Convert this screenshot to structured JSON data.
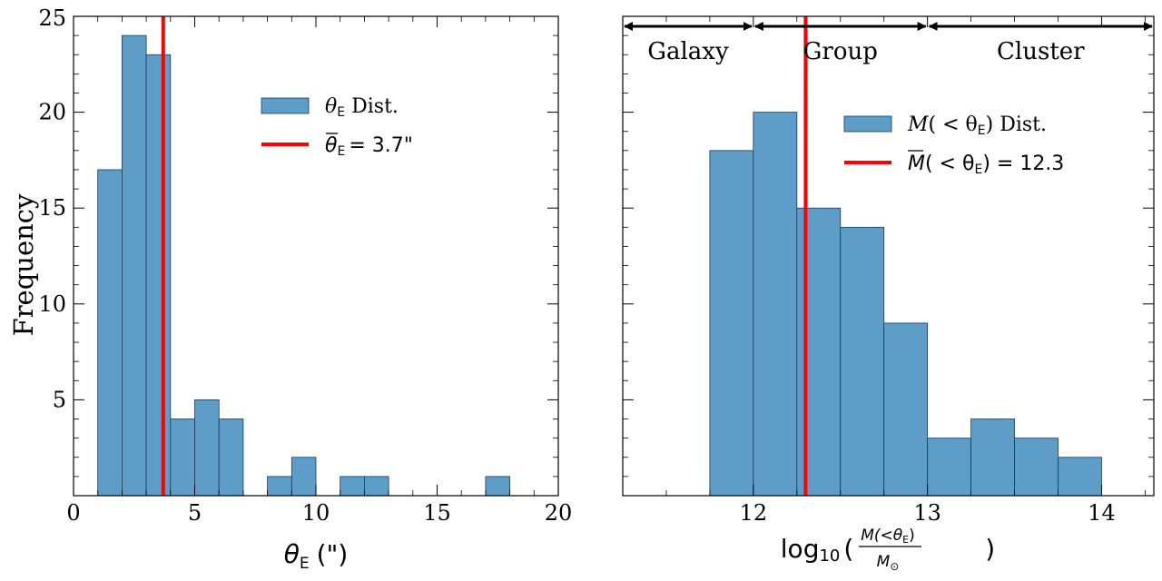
{
  "chart_data": [
    {
      "type": "bar",
      "xlabel_symbol": "θ",
      "xlabel_sub": "E",
      "xlabel_unit": "(\")",
      "ylabel": "Frequency",
      "xlim": [
        0,
        20
      ],
      "ylim": [
        0,
        25
      ],
      "xticks": [
        0,
        5,
        10,
        15,
        20
      ],
      "yticks": [
        5,
        10,
        15,
        20,
        25
      ],
      "bins": [
        {
          "x0": 1,
          "x1": 2,
          "count": 17
        },
        {
          "x0": 2,
          "x1": 3,
          "count": 24
        },
        {
          "x0": 3,
          "x1": 4,
          "count": 23
        },
        {
          "x0": 4,
          "x1": 5,
          "count": 4
        },
        {
          "x0": 5,
          "x1": 6,
          "count": 5
        },
        {
          "x0": 6,
          "x1": 7,
          "count": 4
        },
        {
          "x0": 8,
          "x1": 9,
          "count": 1
        },
        {
          "x0": 9,
          "x1": 10,
          "count": 2
        },
        {
          "x0": 11,
          "x1": 12,
          "count": 1
        },
        {
          "x0": 12,
          "x1": 13,
          "count": 1
        },
        {
          "x0": 17,
          "x1": 18,
          "count": 1
        }
      ],
      "mean_line": {
        "x": 3.7,
        "color": "#ff0000"
      },
      "bar_color": "#5f9dc9",
      "legend": {
        "placement": "upper-center",
        "hist_label_symbol": "θ",
        "hist_label_sub": "E",
        "hist_label_text": " Dist.",
        "line_label_symbol": "θ",
        "line_label_sub": "E",
        "line_label_text": "=  3.7\""
      }
    },
    {
      "type": "bar",
      "xlabel_prefix": "log",
      "xlabel_prefix_sub": "10",
      "xlabel_num": "M(<θ",
      "xlabel_num_sub": "E",
      "xlabel_num_close": ")",
      "xlabel_den": "M",
      "xlabel_den_sub": "⊙",
      "xlim": [
        11.25,
        14.3
      ],
      "ylim": [
        0,
        25
      ],
      "xticks": [
        12,
        13,
        14
      ],
      "bins": [
        {
          "x0": 11.75,
          "x1": 12.0,
          "count": 18
        },
        {
          "x0": 12.0,
          "x1": 12.25,
          "count": 20
        },
        {
          "x0": 12.25,
          "x1": 12.5,
          "count": 15
        },
        {
          "x0": 12.5,
          "x1": 12.75,
          "count": 14
        },
        {
          "x0": 12.75,
          "x1": 13.0,
          "count": 9
        },
        {
          "x0": 13.0,
          "x1": 13.25,
          "count": 3
        },
        {
          "x0": 13.25,
          "x1": 13.5,
          "count": 4
        },
        {
          "x0": 13.5,
          "x1": 13.75,
          "count": 3
        },
        {
          "x0": 13.75,
          "x1": 14.0,
          "count": 2
        }
      ],
      "mean_line": {
        "x": 12.3,
        "color": "#ff0000"
      },
      "bar_color": "#5f9dc9",
      "regions": [
        {
          "label": "Galaxy",
          "x0": 11.25,
          "x1": 12.0
        },
        {
          "label": "Group",
          "x0": 12.0,
          "x1": 13.0
        },
        {
          "label": "Cluster",
          "x0": 13.0,
          "x1": 14.3
        }
      ],
      "legend": {
        "placement": "upper-right",
        "hist_label_m": "M",
        "hist_label_mid": "( < θ",
        "hist_label_sub": "E",
        "hist_label_text": ") Dist.",
        "line_label_m": "M",
        "line_label_mid": "( < θ",
        "line_label_sub": "E",
        "line_label_text": ") =  12.3"
      }
    }
  ]
}
